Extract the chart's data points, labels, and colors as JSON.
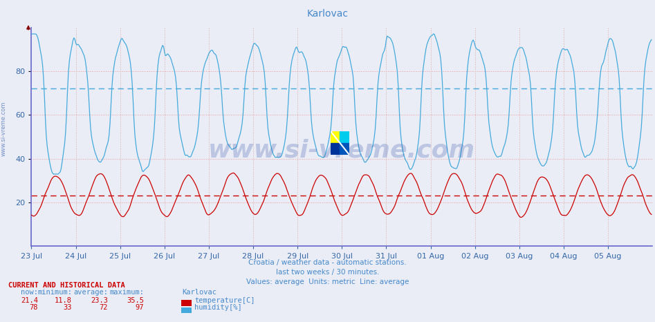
{
  "title": "Karlovac",
  "title_color": "#4488cc",
  "background_color": "#eaedf5",
  "plot_background": "#eaedf5",
  "temp_color": "#cc0000",
  "humid_color": "#44aadd",
  "temp_avg_line": 23.3,
  "humid_avg_line": 72,
  "ylim": [
    0,
    100
  ],
  "yticks": [
    20,
    40,
    60,
    80
  ],
  "xticklabels": [
    "23 Jul",
    "24 Jul",
    "25 Jul",
    "26 Jul",
    "27 Jul",
    "28 Jul",
    "29 Jul",
    "30 Jul",
    "31 Jul",
    "01 Aug",
    "02 Aug",
    "03 Aug",
    "04 Aug",
    "05 Aug"
  ],
  "h_grid_color": "#ee9999",
  "v_grid_color": "#ddaaaa",
  "watermark": "www.si-vreme.com",
  "watermark_color": "#3355aa",
  "watermark_alpha": 0.25,
  "footer1": "Croatia / weather data - automatic stations.",
  "footer2": "last two weeks / 30 minutes.",
  "footer3": "Values: average  Units: metric  Line: average",
  "footer_color": "#4488cc",
  "legend_temp_label": "temperature[C]",
  "legend_humid_label": "humidity[%]",
  "temp_now": "21.4",
  "temp_min": "11.8",
  "temp_avg": "23.3",
  "temp_max": "35.5",
  "humid_now": "78",
  "humid_min": "33",
  "humid_avg": "72",
  "humid_max": "97",
  "n_points": 672
}
